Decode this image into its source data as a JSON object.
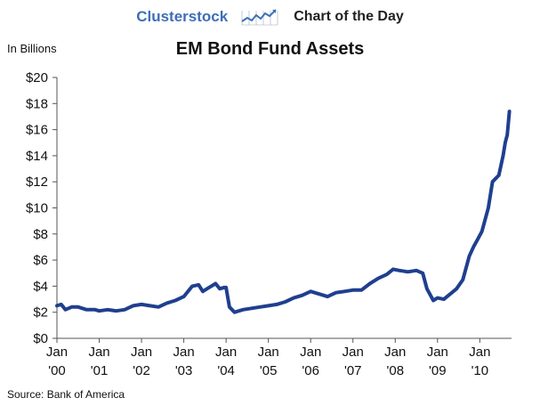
{
  "header": {
    "brand": "Clusterstock",
    "tagline": "Chart of the Day",
    "logo_icon": "trend-chart-icon",
    "brand_color": "#3d6fb5"
  },
  "chart_data": {
    "type": "line",
    "title": "EM Bond Fund Assets",
    "ylabel": "In Billions",
    "xlabel": "",
    "source": "Source: Bank of America",
    "ylim": [
      0,
      20
    ],
    "xlim": [
      2000,
      2010.75
    ],
    "y_ticks": [
      {
        "value": 0,
        "label": "$0"
      },
      {
        "value": 2,
        "label": "$2"
      },
      {
        "value": 4,
        "label": "$4"
      },
      {
        "value": 6,
        "label": "$6"
      },
      {
        "value": 8,
        "label": "$8"
      },
      {
        "value": 10,
        "label": "$10"
      },
      {
        "value": 12,
        "label": "$12"
      },
      {
        "value": 14,
        "label": "$14"
      },
      {
        "value": 16,
        "label": "$16"
      },
      {
        "value": 18,
        "label": "$18"
      },
      {
        "value": 20,
        "label": "$20"
      }
    ],
    "x_ticks": [
      {
        "value": 2000,
        "top": "Jan",
        "bottom": "'00"
      },
      {
        "value": 2001,
        "top": "Jan",
        "bottom": "'01"
      },
      {
        "value": 2002,
        "top": "Jan",
        "bottom": "'02"
      },
      {
        "value": 2003,
        "top": "Jan",
        "bottom": "'03"
      },
      {
        "value": 2004,
        "top": "Jan",
        "bottom": "'04"
      },
      {
        "value": 2005,
        "top": "Jan",
        "bottom": "'05"
      },
      {
        "value": 2006,
        "top": "Jan",
        "bottom": "'06"
      },
      {
        "value": 2007,
        "top": "Jan",
        "bottom": "'07"
      },
      {
        "value": 2008,
        "top": "Jan",
        "bottom": "'08"
      },
      {
        "value": 2009,
        "top": "Jan",
        "bottom": "'09"
      },
      {
        "value": 2010,
        "top": "Jan",
        "bottom": "'10"
      }
    ],
    "series": [
      {
        "color": "#1f3f8f",
        "x": [
          2000.0,
          2000.1,
          2000.2,
          2000.35,
          2000.5,
          2000.7,
          2000.9,
          2001.0,
          2001.2,
          2001.4,
          2001.6,
          2001.8,
          2002.0,
          2002.2,
          2002.4,
          2002.6,
          2002.8,
          2003.0,
          2003.2,
          2003.35,
          2003.45,
          2003.55,
          2003.65,
          2003.75,
          2003.85,
          2003.95,
          2004.0,
          2004.08,
          2004.2,
          2004.4,
          2004.6,
          2004.8,
          2005.0,
          2005.2,
          2005.4,
          2005.6,
          2005.8,
          2006.0,
          2006.2,
          2006.4,
          2006.6,
          2006.8,
          2007.0,
          2007.2,
          2007.4,
          2007.6,
          2007.8,
          2007.95,
          2008.1,
          2008.3,
          2008.5,
          2008.65,
          2008.75,
          2008.9,
          2009.0,
          2009.15,
          2009.3,
          2009.45,
          2009.6,
          2009.75,
          2009.85,
          2009.95,
          2010.05,
          2010.2,
          2010.3,
          2010.45,
          2010.55,
          2010.6,
          2010.65,
          2010.7
        ],
        "y": [
          2.5,
          2.6,
          2.2,
          2.4,
          2.4,
          2.2,
          2.2,
          2.1,
          2.2,
          2.1,
          2.2,
          2.5,
          2.6,
          2.5,
          2.4,
          2.7,
          2.9,
          3.2,
          4.0,
          4.1,
          3.6,
          3.8,
          4.0,
          4.2,
          3.8,
          3.9,
          3.9,
          2.4,
          2.0,
          2.2,
          2.3,
          2.4,
          2.5,
          2.6,
          2.8,
          3.1,
          3.3,
          3.6,
          3.4,
          3.2,
          3.5,
          3.6,
          3.7,
          3.7,
          4.2,
          4.6,
          4.9,
          5.3,
          5.2,
          5.1,
          5.2,
          5.0,
          3.8,
          2.9,
          3.1,
          3.0,
          3.4,
          3.8,
          4.5,
          6.3,
          7.0,
          7.6,
          8.2,
          10.0,
          12.0,
          12.5,
          14.0,
          15.0,
          15.6,
          17.4
        ]
      }
    ],
    "grid": false,
    "legend": "none"
  }
}
